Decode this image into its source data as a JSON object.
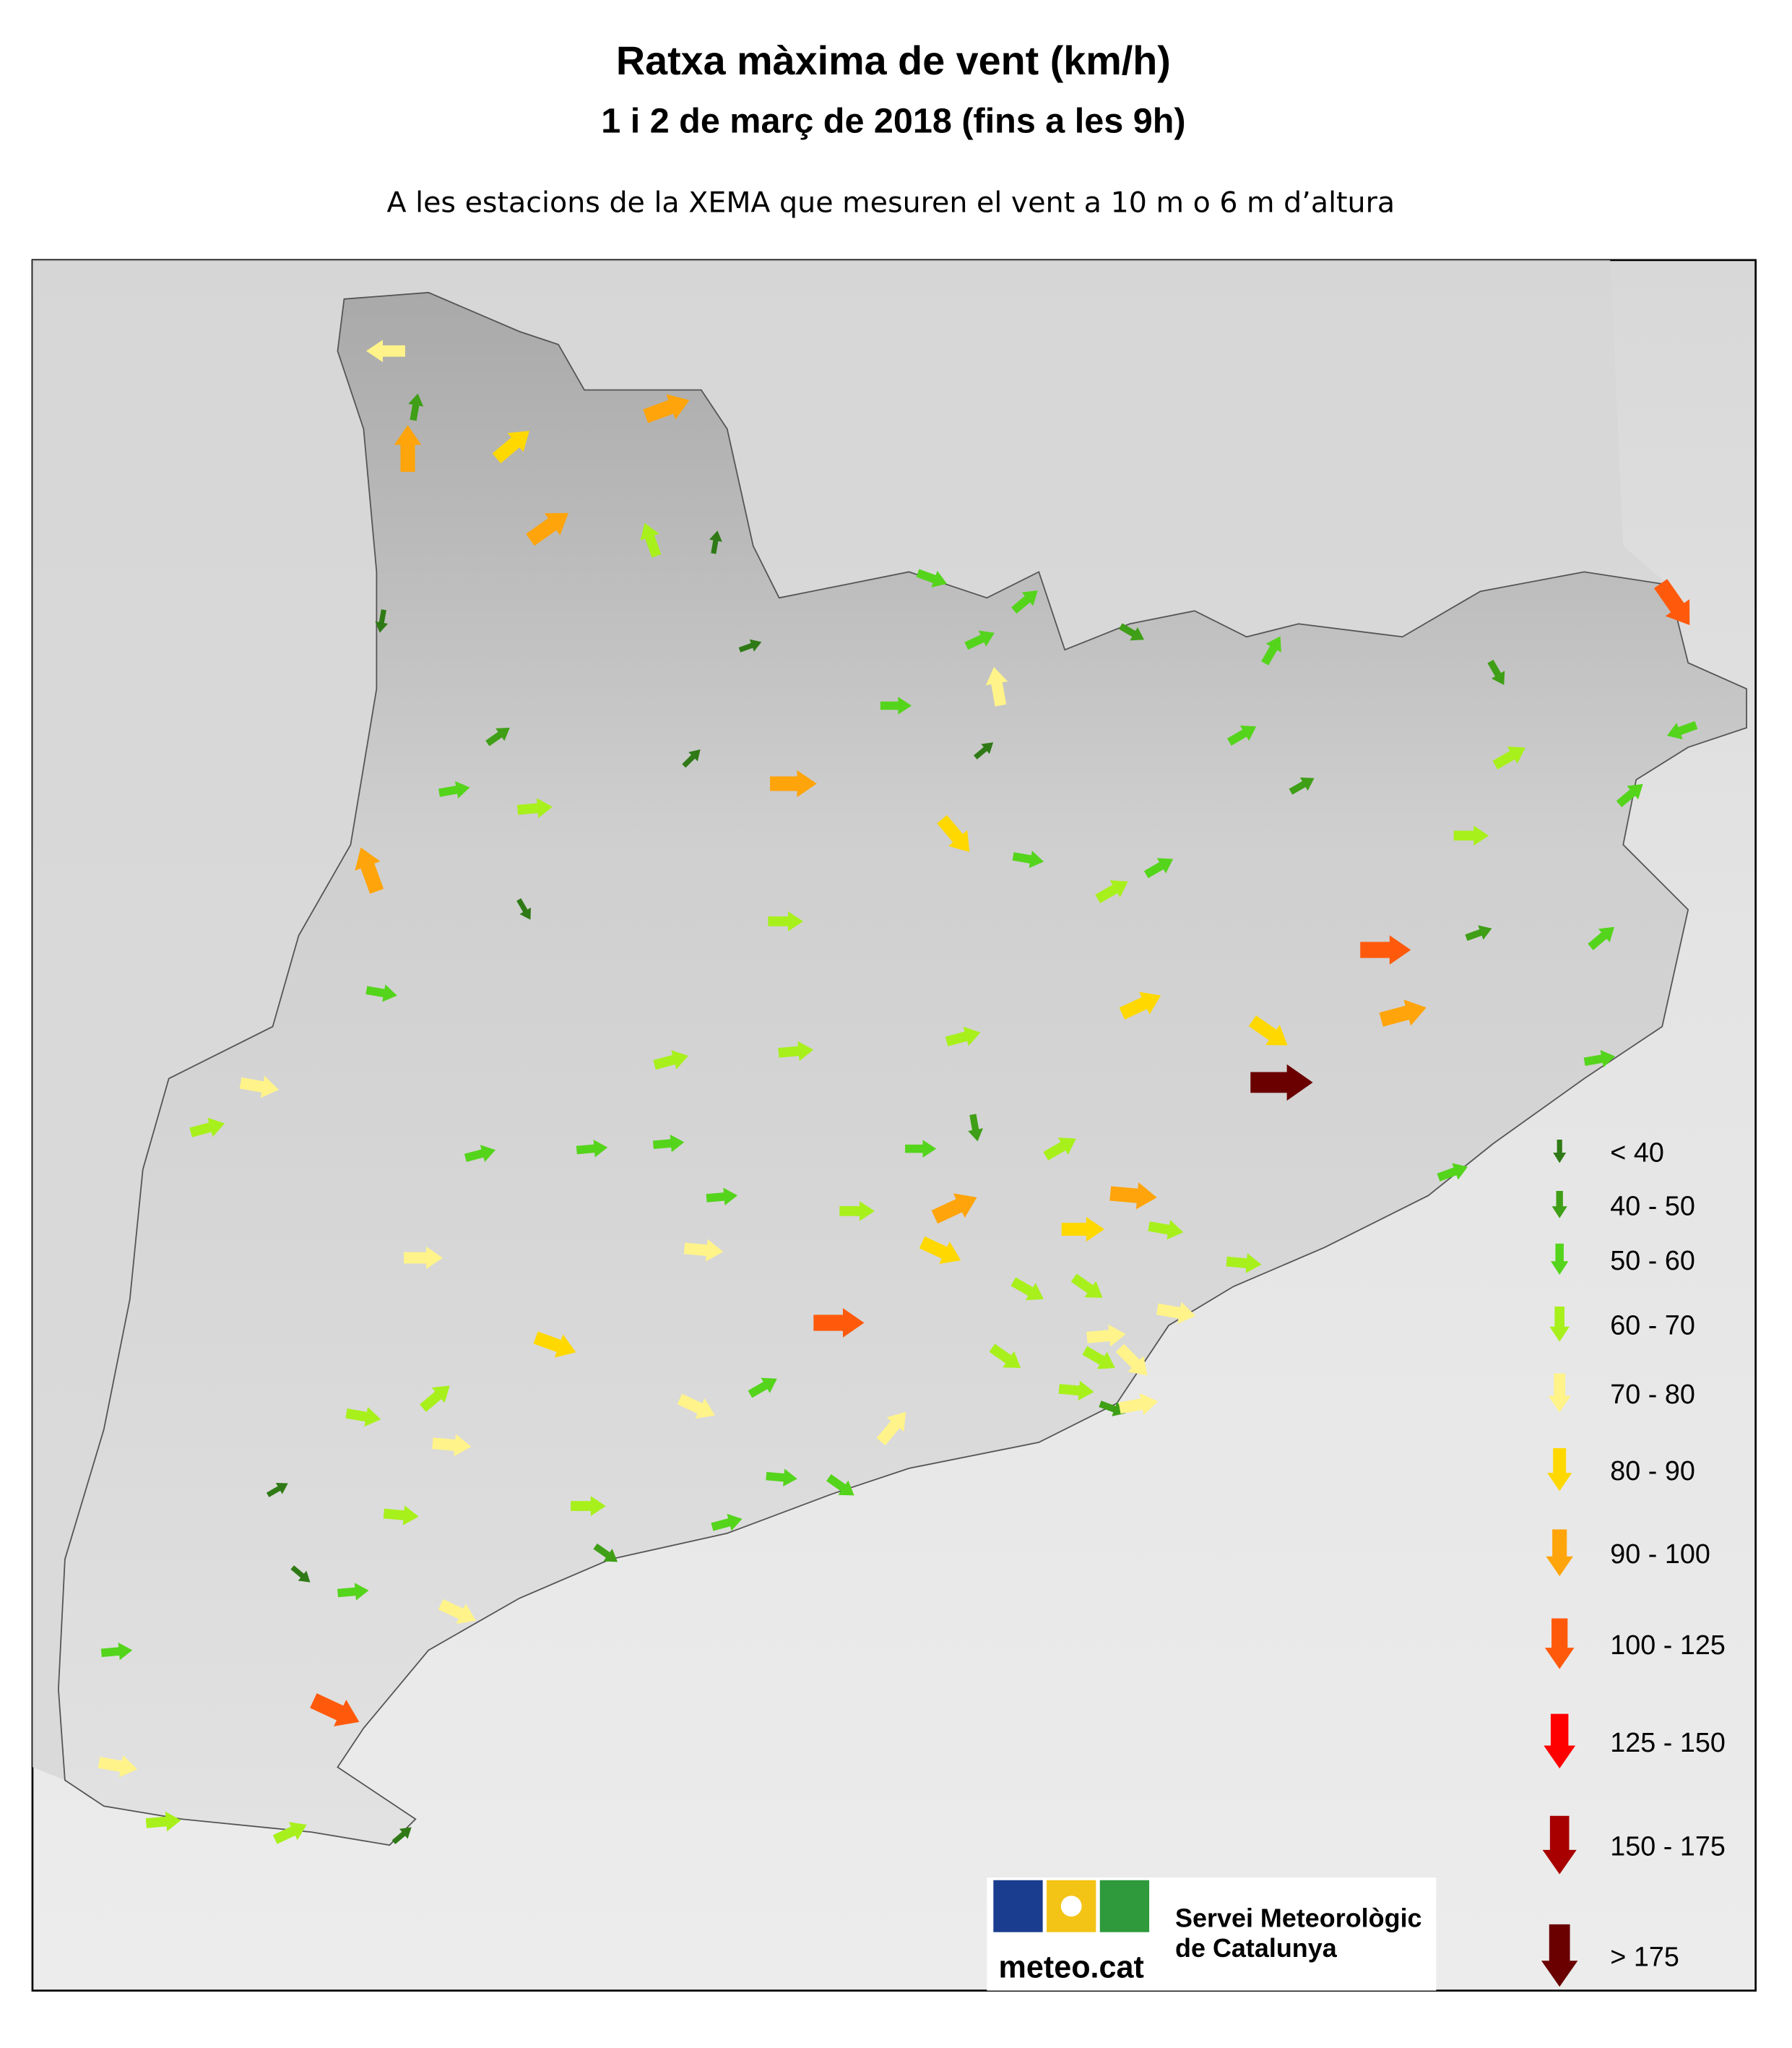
{
  "title": "Ratxa màxima de vent (km/h)",
  "subtitle": "1 i 2 de març de 2018 (fins a les 9h)",
  "note": "A les estacions de la XEMA que mesuren el vent a 10 m o 6 m d’altura",
  "legend": [
    {
      "label": "< 40",
      "color": "#2f7a16"
    },
    {
      "label": "40 - 50",
      "color": "#3f9f16"
    },
    {
      "label": "50 - 60",
      "color": "#55d41c"
    },
    {
      "label": "60 - 70",
      "color": "#a8f01c"
    },
    {
      "label": "70 - 80",
      "color": "#fff38a"
    },
    {
      "label": "80 - 90",
      "color": "#ffd800"
    },
    {
      "label": "90 - 100",
      "color": "#ffa40a"
    },
    {
      "label": "100 - 125",
      "color": "#ff5a0c"
    },
    {
      "label": "125 - 150",
      "color": "#ff0000"
    },
    {
      "label": "150 - 175",
      "color": "#a80000"
    },
    {
      "label": "> 175",
      "color": "#6a0000"
    }
  ],
  "logo": {
    "brand": "meteo.cat",
    "line1": "Servei Meteorològic",
    "line2": "de Catalunya"
  }
}
